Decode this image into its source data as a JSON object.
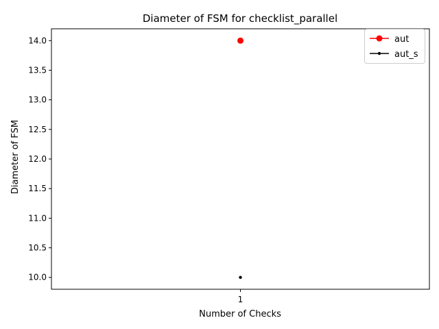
{
  "chart_data": {
    "type": "line",
    "title": "Diameter of FSM for checklist_parallel",
    "xlabel": "Number of Checks",
    "ylabel": "Diameter of FSM",
    "categories": [
      "1"
    ],
    "x": [
      1
    ],
    "xlim": [
      0.5,
      1.5
    ],
    "ylim": [
      9.8,
      14.2
    ],
    "yticks": [
      10.0,
      10.5,
      11.0,
      11.5,
      12.0,
      12.5,
      13.0,
      13.5,
      14.0
    ],
    "ytick_labels": [
      "10.0",
      "10.5",
      "11.0",
      "11.5",
      "12.0",
      "12.5",
      "13.0",
      "13.5",
      "14.0"
    ],
    "grid": false,
    "legend_position": "top-right",
    "series": [
      {
        "name": "aut",
        "values": [
          14
        ],
        "color": "#ff0000",
        "marker": "circle-large"
      },
      {
        "name": "aut_s",
        "values": [
          10
        ],
        "color": "#000000",
        "marker": "circle-small"
      }
    ]
  }
}
